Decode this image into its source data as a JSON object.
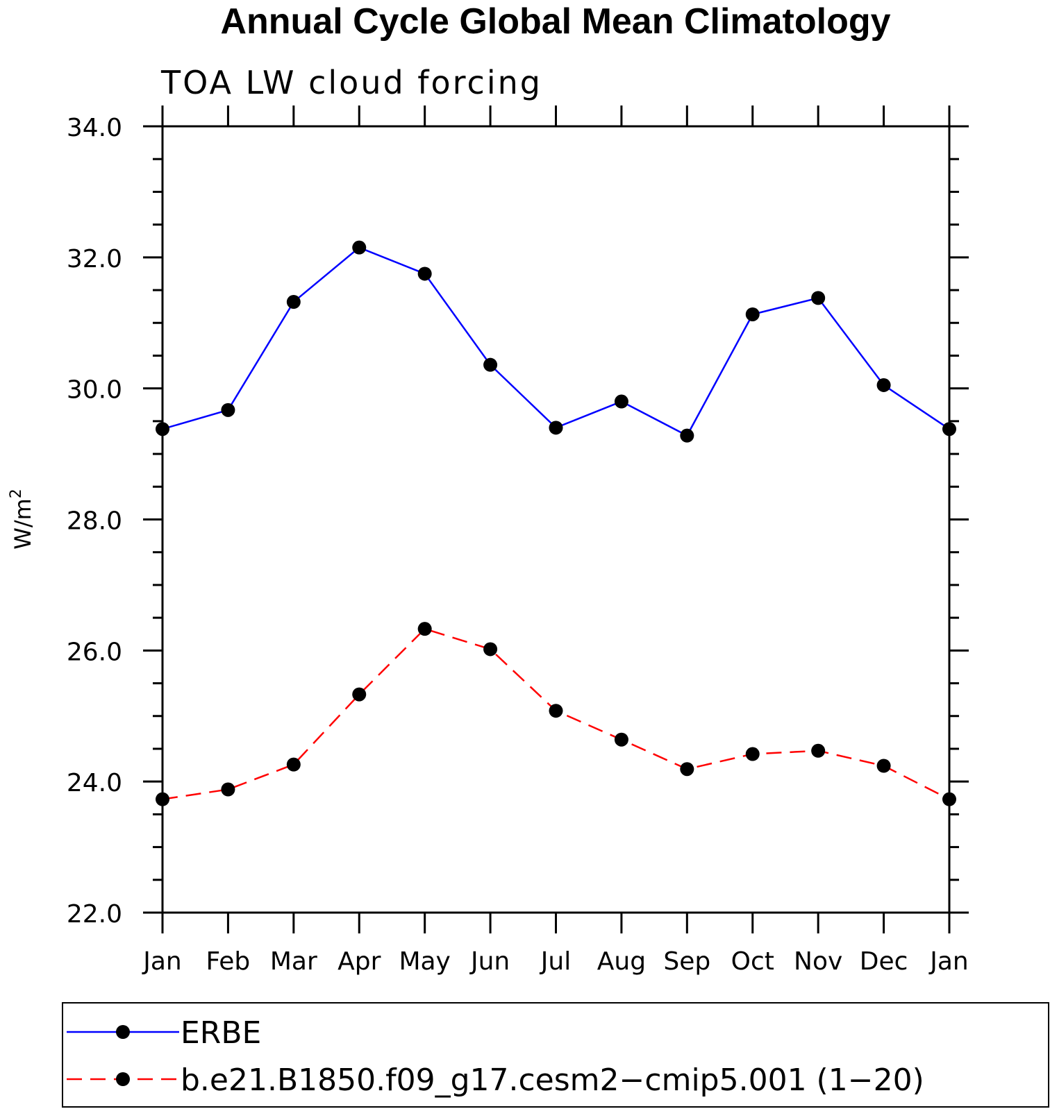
{
  "chart_data": {
    "type": "line",
    "title": "Annual Cycle Global Mean Climatology",
    "subtitle": "TOA LW cloud forcing",
    "ylabel": "W/m",
    "ylabel_sup": "2",
    "xlabel": "",
    "categories": [
      "Jan",
      "Feb",
      "Mar",
      "Apr",
      "May",
      "Jun",
      "Jul",
      "Aug",
      "Sep",
      "Oct",
      "Nov",
      "Dec",
      "Jan"
    ],
    "ylim": [
      22.0,
      34.0
    ],
    "yticks": [
      "22.0",
      "24.0",
      "26.0",
      "28.0",
      "30.0",
      "32.0",
      "34.0"
    ],
    "y_minor_step": 0.5,
    "grid": false,
    "legend_position": "bottom",
    "series": [
      {
        "name": "ERBE",
        "color": "#0000ff",
        "dashed": false,
        "values": [
          29.38,
          29.67,
          31.32,
          32.15,
          31.75,
          30.36,
          29.4,
          29.8,
          29.28,
          31.13,
          31.38,
          30.05,
          29.38
        ]
      },
      {
        "name": "b.e21.B1850.f09_g17.cesm2−cmip5.001 (1−20)",
        "color": "#ff0000",
        "dashed": true,
        "values": [
          23.73,
          23.88,
          24.26,
          25.33,
          26.33,
          26.02,
          25.08,
          24.64,
          24.19,
          24.42,
          24.47,
          24.24,
          23.73
        ]
      }
    ],
    "marker_color": "#000000"
  }
}
